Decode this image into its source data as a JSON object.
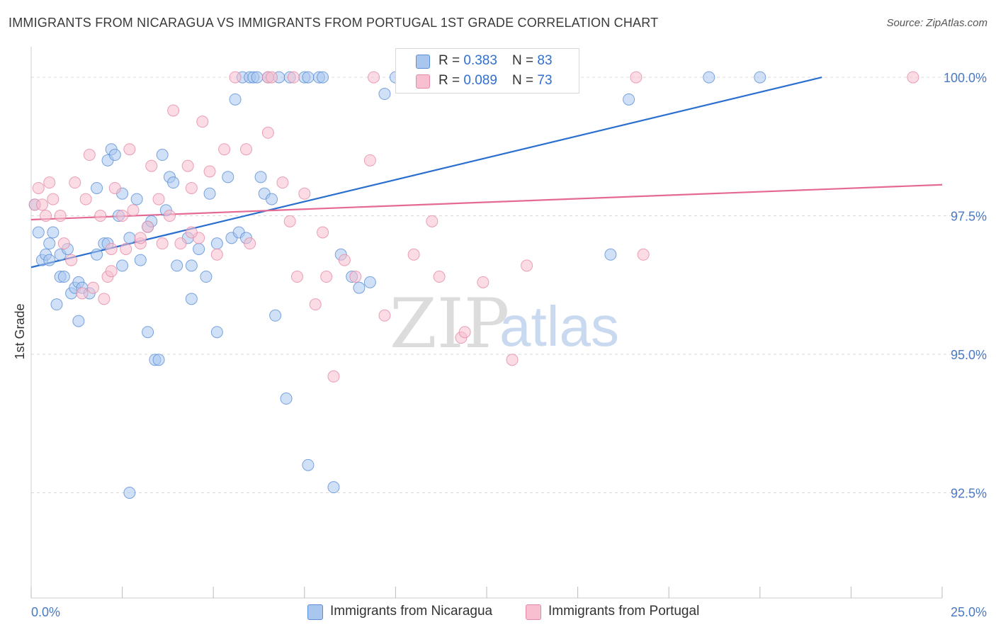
{
  "title": "IMMIGRANTS FROM NICARAGUA VS IMMIGRANTS FROM PORTUGAL 1ST GRADE CORRELATION CHART",
  "source": "Source: ZipAtlas.com",
  "watermark": {
    "zip": "ZIP",
    "atlas": "atlas"
  },
  "legend": {
    "rows": [
      {
        "r_label": "R = ",
        "r_value": "0.383",
        "n_label": "N = ",
        "n_value": "83"
      },
      {
        "r_label": "R = ",
        "r_value": "0.089",
        "n_label": "N = ",
        "n_value": "73"
      }
    ]
  },
  "colors": {
    "blue_fill": "#a9c6ef",
    "blue_stroke": "#5b8fd6",
    "blue_line": "#2a6fd0",
    "pink_fill": "#f7bfd0",
    "pink_stroke": "#e58aa6",
    "pink_line": "#e56a93",
    "tick_text": "#4a79c4"
  },
  "chart_data": {
    "type": "scatter",
    "title": "IMMIGRANTS FROM NICARAGUA VS IMMIGRANTS FROM PORTUGAL 1ST GRADE CORRELATION CHART",
    "xlabel": "",
    "ylabel": "1st Grade",
    "xlim": [
      0,
      25
    ],
    "ylim": [
      90.6,
      100.5
    ],
    "x_tick_labels": [
      {
        "value": 0,
        "label": "0.0%"
      },
      {
        "value": 25,
        "label": "25.0%"
      }
    ],
    "y_tick_labels": [
      {
        "value": 100,
        "label": "100.0%"
      },
      {
        "value": 97.5,
        "label": "97.5%"
      },
      {
        "value": 95,
        "label": "95.0%"
      },
      {
        "value": 92.5,
        "label": "92.5%"
      }
    ],
    "grid": true,
    "legend_position": "top-center",
    "series": [
      {
        "name": "Immigrants from Nicaragua",
        "r": 0.383,
        "n": 83,
        "trend": {
          "x": [
            0,
            21.7
          ],
          "y": [
            96.57,
            100.0
          ]
        },
        "points": [
          [
            0.1,
            97.7
          ],
          [
            0.2,
            97.2
          ],
          [
            0.3,
            96.7
          ],
          [
            0.4,
            96.8
          ],
          [
            0.5,
            96.7
          ],
          [
            0.6,
            97.2
          ],
          [
            0.7,
            95.9
          ],
          [
            0.8,
            96.8
          ],
          [
            0.8,
            96.4
          ],
          [
            0.9,
            96.4
          ],
          [
            1.1,
            96.1
          ],
          [
            1.2,
            96.2
          ],
          [
            1.3,
            96.3
          ],
          [
            1.3,
            95.6
          ],
          [
            1.4,
            96.2
          ],
          [
            1.6,
            96.1
          ],
          [
            1.8,
            96.8
          ],
          [
            1.8,
            98.0
          ],
          [
            2.0,
            97.0
          ],
          [
            2.1,
            97.0
          ],
          [
            2.1,
            98.5
          ],
          [
            2.2,
            98.7
          ],
          [
            2.3,
            98.6
          ],
          [
            2.4,
            97.5
          ],
          [
            2.5,
            97.9
          ],
          [
            2.5,
            96.6
          ],
          [
            2.7,
            97.1
          ],
          [
            2.9,
            97.8
          ],
          [
            3.0,
            96.7
          ],
          [
            3.2,
            95.4
          ],
          [
            3.2,
            97.3
          ],
          [
            3.3,
            97.4
          ],
          [
            3.4,
            94.9
          ],
          [
            3.5,
            94.9
          ],
          [
            3.6,
            98.6
          ],
          [
            3.7,
            97.6
          ],
          [
            3.8,
            98.2
          ],
          [
            3.9,
            98.1
          ],
          [
            4.0,
            96.6
          ],
          [
            4.3,
            97.1
          ],
          [
            4.4,
            96.0
          ],
          [
            4.4,
            96.6
          ],
          [
            4.6,
            96.9
          ],
          [
            4.8,
            96.4
          ],
          [
            4.9,
            97.9
          ],
          [
            5.1,
            95.4
          ],
          [
            5.1,
            97.0
          ],
          [
            5.4,
            98.2
          ],
          [
            5.5,
            97.1
          ],
          [
            5.6,
            99.6
          ],
          [
            5.7,
            97.2
          ],
          [
            5.8,
            100.0
          ],
          [
            5.9,
            97.1
          ],
          [
            6.0,
            100.0
          ],
          [
            6.1,
            100.0
          ],
          [
            6.2,
            100.0
          ],
          [
            6.3,
            98.2
          ],
          [
            6.4,
            97.9
          ],
          [
            6.5,
            100.0
          ],
          [
            6.6,
            97.8
          ],
          [
            6.7,
            95.7
          ],
          [
            6.8,
            100.0
          ],
          [
            7.0,
            94.2
          ],
          [
            7.1,
            100.0
          ],
          [
            7.5,
            100.0
          ],
          [
            7.6,
            100.0
          ],
          [
            7.6,
            93.0
          ],
          [
            7.9,
            100.0
          ],
          [
            8.3,
            92.6
          ],
          [
            8.5,
            96.8
          ],
          [
            8.8,
            96.4
          ],
          [
            9.0,
            96.2
          ],
          [
            9.3,
            96.3
          ],
          [
            9.7,
            99.7
          ],
          [
            10.0,
            100.0
          ],
          [
            15.9,
            96.8
          ],
          [
            16.4,
            99.6
          ],
          [
            18.6,
            100.0
          ],
          [
            20.0,
            100.0
          ],
          [
            2.7,
            92.5
          ],
          [
            8.0,
            100.0
          ],
          [
            1.0,
            96.9
          ],
          [
            0.5,
            97.0
          ]
        ]
      },
      {
        "name": "Immigrants from Portugal",
        "r": 0.089,
        "n": 73,
        "trend": {
          "x": [
            0,
            25
          ],
          "y": [
            97.43,
            98.06
          ]
        },
        "points": [
          [
            0.1,
            97.7
          ],
          [
            0.2,
            98.0
          ],
          [
            0.3,
            97.7
          ],
          [
            0.4,
            97.5
          ],
          [
            0.5,
            98.1
          ],
          [
            0.6,
            97.8
          ],
          [
            0.8,
            97.5
          ],
          [
            0.9,
            97.0
          ],
          [
            1.1,
            96.7
          ],
          [
            1.2,
            98.1
          ],
          [
            1.4,
            96.1
          ],
          [
            1.5,
            97.8
          ],
          [
            1.6,
            98.6
          ],
          [
            1.7,
            96.2
          ],
          [
            1.9,
            97.5
          ],
          [
            2.0,
            96.0
          ],
          [
            2.1,
            96.4
          ],
          [
            2.2,
            96.9
          ],
          [
            2.3,
            98.0
          ],
          [
            2.5,
            97.5
          ],
          [
            2.6,
            96.9
          ],
          [
            2.7,
            98.7
          ],
          [
            2.8,
            97.6
          ],
          [
            3.0,
            97.0
          ],
          [
            3.2,
            97.3
          ],
          [
            3.3,
            98.4
          ],
          [
            3.5,
            97.8
          ],
          [
            3.6,
            97.0
          ],
          [
            3.8,
            97.5
          ],
          [
            3.9,
            99.4
          ],
          [
            4.1,
            97.0
          ],
          [
            4.3,
            98.4
          ],
          [
            4.4,
            98.0
          ],
          [
            4.6,
            97.1
          ],
          [
            4.7,
            99.2
          ],
          [
            4.9,
            98.3
          ],
          [
            5.1,
            96.8
          ],
          [
            5.3,
            98.7
          ],
          [
            5.6,
            100.0
          ],
          [
            5.9,
            98.7
          ],
          [
            6.0,
            97.0
          ],
          [
            6.5,
            100.0
          ],
          [
            6.5,
            99.0
          ],
          [
            6.6,
            100.0
          ],
          [
            6.9,
            98.1
          ],
          [
            7.1,
            97.4
          ],
          [
            7.3,
            96.4
          ],
          [
            7.5,
            97.9
          ],
          [
            7.8,
            95.9
          ],
          [
            8.0,
            97.2
          ],
          [
            8.1,
            96.4
          ],
          [
            8.3,
            94.6
          ],
          [
            8.6,
            96.7
          ],
          [
            8.9,
            96.4
          ],
          [
            9.3,
            98.5
          ],
          [
            9.4,
            100.0
          ],
          [
            9.7,
            95.7
          ],
          [
            10.5,
            96.8
          ],
          [
            11.0,
            97.4
          ],
          [
            11.2,
            96.4
          ],
          [
            11.8,
            95.3
          ],
          [
            11.9,
            95.4
          ],
          [
            12.4,
            96.3
          ],
          [
            13.2,
            94.9
          ],
          [
            13.6,
            96.6
          ],
          [
            13.9,
            100.0
          ],
          [
            16.6,
            100.0
          ],
          [
            16.8,
            96.8
          ],
          [
            24.2,
            100.0
          ],
          [
            2.2,
            96.5
          ],
          [
            4.4,
            97.2
          ],
          [
            7.2,
            100.0
          ],
          [
            3.0,
            97.1
          ]
        ]
      }
    ]
  },
  "bottom_legend": {
    "items": [
      {
        "label": "Immigrants from Nicaragua"
      },
      {
        "label": "Immigrants from Portugal"
      }
    ]
  }
}
